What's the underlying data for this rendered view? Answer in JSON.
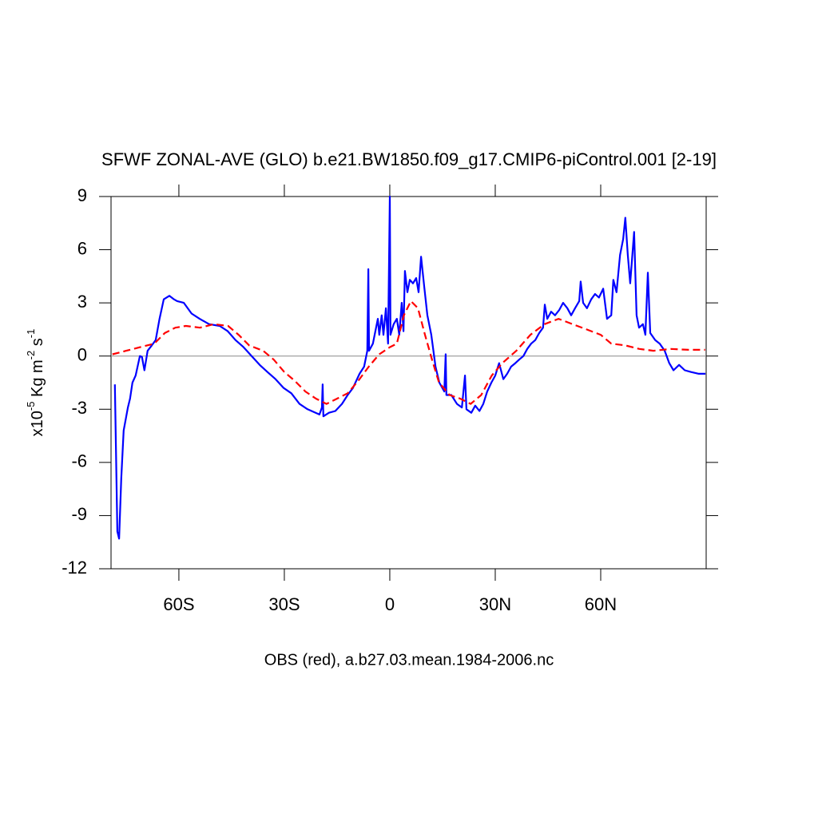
{
  "chart_data": {
    "type": "line",
    "title": "SFWF ZONAL-AVE (GLO) b.e21.BW1850.f09_g17.CMIP6-piControl.001 [2-19]",
    "ylabel": [
      "x10",
      "-5",
      " Kg m",
      "-2",
      " s",
      "-1"
    ],
    "xlabel": "OBS (red), a.b27.03.mean.1984-2006.nc",
    "xlim": [
      -79.3,
      90
    ],
    "ylim": [
      -12,
      9
    ],
    "xticks": [
      {
        "value": -60,
        "label": "60S"
      },
      {
        "value": -30,
        "label": "30S"
      },
      0,
      {
        "value": 30,
        "label": "30N"
      },
      {
        "value": 60,
        "label": "60N"
      }
    ],
    "yticks": [
      -12,
      -9,
      -6,
      -3,
      0,
      3,
      6,
      9
    ],
    "zero_line": true,
    "series": [
      {
        "color": "#0000ff",
        "dashed": false,
        "x": [
          -78.2,
          -77.5,
          -77,
          -76.4,
          -75.7,
          -74.5,
          -73.9,
          -73.2,
          -72.3,
          -71.1,
          -70.5,
          -69.8,
          -68.9,
          -67.7,
          -66.6,
          -65.5,
          -64.3,
          -62.7,
          -61.4,
          -60.5,
          -58.6,
          -56.4,
          -54.1,
          -51.4,
          -48.4,
          -46.1,
          -43.9,
          -41.6,
          -39.3,
          -37,
          -34.8,
          -32.5,
          -30.2,
          -28,
          -25.7,
          -23.4,
          -21.1,
          -20,
          -19.3,
          -19.1,
          -18.9,
          -17.3,
          -15.5,
          -13.6,
          -12,
          -10.5,
          -8.6,
          -7.3,
          -6.4,
          -6.1,
          -5.9,
          -4.8,
          -4.1,
          -3.4,
          -3,
          -2.3,
          -1.8,
          -1.1,
          -0.5,
          0,
          0.2,
          1.1,
          2,
          2.7,
          3.4,
          3.9,
          4.3,
          5,
          5.7,
          6.6,
          7.5,
          8.2,
          8.9,
          9.8,
          10.7,
          11.8,
          13,
          14.1,
          15.5,
          15.9,
          16.1,
          17.5,
          19.1,
          20.5,
          21.4,
          21.8,
          23.2,
          24.3,
          25.5,
          26.6,
          27.7,
          28.9,
          30,
          31.1,
          32.3,
          33.4,
          34.5,
          35.7,
          36.8,
          38,
          39.1,
          40.2,
          41.4,
          42.5,
          43.6,
          44.1,
          44.8,
          45.9,
          47,
          48.2,
          49.3,
          50.5,
          51.6,
          52.7,
          53.9,
          54.3,
          55,
          56.1,
          57.3,
          58.4,
          59.5,
          60.7,
          61.8,
          63,
          63.6,
          64.5,
          65.5,
          66.4,
          67,
          67.7,
          68.4,
          69.5,
          70.2,
          70.9,
          72,
          72.7,
          73.4,
          74.1,
          75.5,
          76.8,
          78.2,
          79.5,
          80.7,
          82.3,
          83.9,
          85.7,
          87.9,
          89.8
        ],
        "values": [
          -1.6,
          -9.9,
          -10.3,
          -6.9,
          -4.2,
          -2.9,
          -2.4,
          -1.5,
          -1.1,
          0,
          -0.05,
          -0.8,
          0.3,
          0.6,
          0.9,
          2.1,
          3.2,
          3.4,
          3.2,
          3.1,
          3.0,
          2.4,
          2.1,
          1.8,
          1.7,
          1.4,
          0.9,
          0.5,
          0,
          -0.5,
          -0.9,
          -1.3,
          -1.8,
          -2.1,
          -2.7,
          -3.0,
          -3.2,
          -3.3,
          -2.9,
          -1.6,
          -3.4,
          -3.2,
          -3.1,
          -2.7,
          -2.2,
          -1.8,
          -1.0,
          -0.6,
          0.3,
          4.9,
          0.3,
          0.7,
          1.4,
          2.1,
          1.2,
          2.3,
          1.2,
          2.7,
          0.7,
          9.0,
          1.2,
          1.8,
          2.1,
          1.2,
          3.0,
          1.4,
          4.8,
          3.6,
          4.3,
          4.1,
          4.4,
          3.6,
          5.6,
          3.9,
          2.3,
          1.2,
          -0.6,
          -1.5,
          -2.0,
          0.1,
          -2.2,
          -2.2,
          -2.7,
          -2.9,
          -1.1,
          -3.0,
          -3.2,
          -2.8,
          -3.1,
          -2.7,
          -2.0,
          -1.5,
          -1.1,
          -0.4,
          -1.3,
          -1.0,
          -0.6,
          -0.4,
          -0.2,
          0,
          0.4,
          0.7,
          0.9,
          1.3,
          1.6,
          2.9,
          2.1,
          2.5,
          2.3,
          2.6,
          3.0,
          2.7,
          2.3,
          2.7,
          3.1,
          4.2,
          3.0,
          2.7,
          3.2,
          3.5,
          3.3,
          3.8,
          2.1,
          2.3,
          4.3,
          3.6,
          5.7,
          6.6,
          7.8,
          5.7,
          4.1,
          7.0,
          2.3,
          1.6,
          1.8,
          1.2,
          4.7,
          1.3,
          0.9,
          0.7,
          0.3,
          -0.4,
          -0.8,
          -0.5,
          -0.8,
          -0.9,
          -1.0,
          -1.0
        ]
      },
      {
        "color": "#ff0000",
        "dashed": true,
        "x": [
          -78.9,
          -75,
          -71,
          -67,
          -64,
          -61,
          -58,
          -54,
          -50,
          -46,
          -43,
          -40,
          -36,
          -33,
          -30,
          -27,
          -24,
          -21,
          -18,
          -15,
          -12,
          -9,
          -6,
          -3,
          0,
          2,
          4,
          6,
          8,
          10,
          12,
          14,
          17,
          20,
          23,
          26,
          29,
          32,
          36,
          40,
          44,
          48,
          52,
          56,
          60,
          63,
          67,
          71,
          75,
          80,
          85,
          89.7
        ],
        "values": [
          0.1,
          0.3,
          0.5,
          0.7,
          1.3,
          1.6,
          1.7,
          1.6,
          1.8,
          1.7,
          1.2,
          0.6,
          0.3,
          -0.2,
          -0.9,
          -1.4,
          -2.0,
          -2.4,
          -2.7,
          -2.4,
          -2.1,
          -1.4,
          -0.6,
          0.1,
          0.5,
          0.7,
          2.3,
          3.1,
          2.7,
          1.2,
          -0.2,
          -1.5,
          -2.2,
          -2.4,
          -2.7,
          -2.2,
          -1.1,
          -0.4,
          0.3,
          1.2,
          1.8,
          2.1,
          1.8,
          1.5,
          1.2,
          0.7,
          0.6,
          0.4,
          0.3,
          0.4,
          0.35,
          0.35
        ]
      }
    ]
  }
}
